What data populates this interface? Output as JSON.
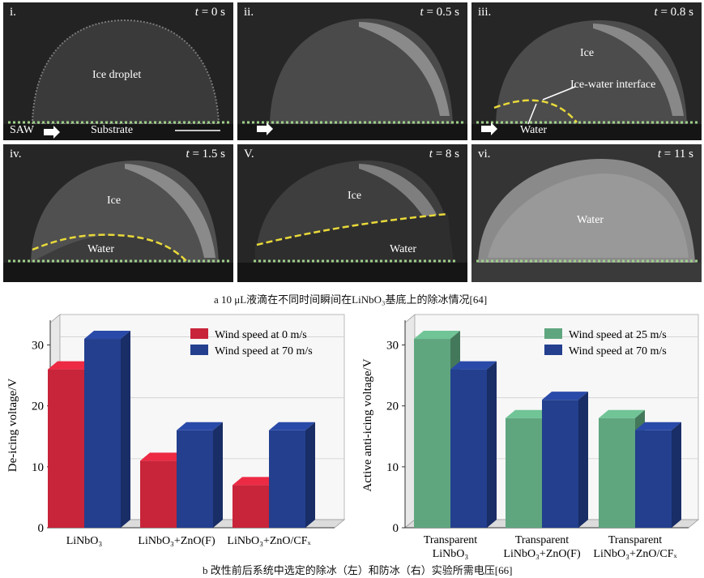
{
  "panels": [
    {
      "label": "i.",
      "t_prefix": "t",
      "t_value": " = 0 s",
      "texts": [
        {
          "text": "Ice droplet"
        },
        {
          "text": "SAW"
        },
        {
          "text": "Substrate"
        }
      ]
    },
    {
      "label": "ii.",
      "t_prefix": "t",
      "t_value": " = 0.5 s",
      "texts": []
    },
    {
      "label": "iii.",
      "t_prefix": "t",
      "t_value": " = 0.8 s",
      "texts": [
        {
          "text": "Ice"
        },
        {
          "text": "Ice-water interface"
        },
        {
          "text": "Water"
        }
      ]
    },
    {
      "label": "iv.",
      "t_prefix": "t",
      "t_value": " =  1.5 s",
      "texts": [
        {
          "text": "Ice"
        },
        {
          "text": "Water"
        }
      ]
    },
    {
      "label": "V.",
      "t_prefix": "t",
      "t_value": " = 8 s",
      "texts": [
        {
          "text": "Ice"
        },
        {
          "text": "Water"
        }
      ]
    },
    {
      "label": "vi.",
      "t_prefix": "t",
      "t_value": " = 11 s",
      "texts": [
        {
          "text": "Water"
        }
      ]
    }
  ],
  "caption_a": "a  10 μL液滴在不同时间瞬间在LiNbO₃基底上的除冰情况[64]",
  "caption_b": "b  改性前后系统中选定的除冰（左）和防冰（右）实验所需电压[66]",
  "colors": {
    "red": "#c8243a",
    "blue": "#233f8e",
    "green": "#5fa67f",
    "dotted": "#9fd08a",
    "dashed": "#e8d93a"
  },
  "chart_data": [
    {
      "type": "bar",
      "categories": [
        "LiNbO₃",
        "LiNbO₃+ZnO(F)",
        "LiNbO₃+ZnO/CFₓ"
      ],
      "series": [
        {
          "name": "Wind speed at 0 m/s",
          "values": [
            26,
            11,
            7
          ]
        },
        {
          "name": "Wind speed at 70 m/s",
          "values": [
            31,
            16,
            16
          ]
        }
      ],
      "ylabel": "De-icing voltage/V",
      "yticks": [
        0,
        10,
        20,
        30
      ],
      "ylim": [
        0,
        33
      ],
      "grid": true,
      "legend": "top-right"
    },
    {
      "type": "bar",
      "categories": [
        [
          "Transparent",
          "LiNbO₃"
        ],
        [
          "Transparent",
          "LiNbO₃+ZnO(F)"
        ],
        [
          "Transparent",
          "LiNbO₃+ZnO/CFₓ"
        ]
      ],
      "series": [
        {
          "name": "Wind speed at 25 m/s",
          "values": [
            31,
            18,
            18
          ]
        },
        {
          "name": "Wind speed at 70 m/s",
          "values": [
            26,
            21,
            16
          ]
        }
      ],
      "ylabel": "Active anti-icing voltage/V",
      "yticks": [
        0,
        10,
        20,
        30
      ],
      "ylim": [
        0,
        33
      ],
      "grid": true,
      "legend": "top-right"
    }
  ]
}
